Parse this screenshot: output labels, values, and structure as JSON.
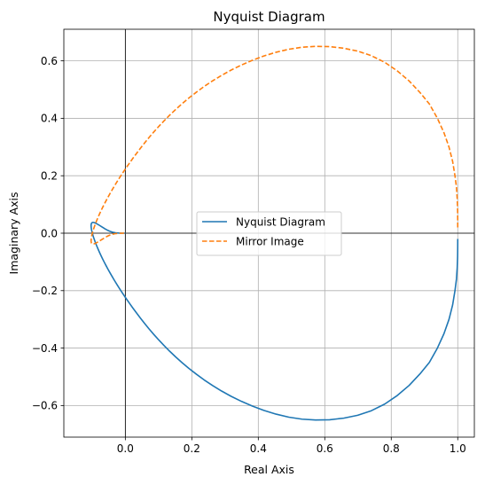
{
  "chart_data": {
    "type": "line",
    "title": "Nyquist Diagram",
    "xlabel": "Real Axis",
    "ylabel": "Imaginary Axis",
    "xlim": [
      -0.185,
      1.05
    ],
    "ylim": [
      -0.71,
      0.71
    ],
    "xticks": [
      0.0,
      0.2,
      0.4,
      0.6,
      0.8,
      1.0
    ],
    "xtick_labels": [
      "0.0",
      "0.2",
      "0.4",
      "0.6",
      "0.8",
      "1.0"
    ],
    "yticks": [
      -0.6,
      -0.4,
      -0.2,
      0.0,
      0.2,
      0.4,
      0.6
    ],
    "ytick_labels": [
      "−0.6",
      "−0.4",
      "−0.2",
      "0.0",
      "0.2",
      "0.4",
      "0.6"
    ],
    "grid": true,
    "reference_lines": {
      "x": 0,
      "y": 0
    },
    "legend": {
      "placement": "center",
      "entries": [
        "Nyquist Diagram",
        "Mirror Image"
      ]
    },
    "series": [
      {
        "name": "Nyquist Diagram",
        "color": "#1f77b4",
        "style": "solid",
        "x": [
          1.0,
          0.9999,
          0.9996,
          0.9984,
          0.9961,
          0.9917,
          0.9846,
          0.9737,
          0.9585,
          0.9388,
          0.9146,
          0.8863,
          0.8538,
          0.8182,
          0.7802,
          0.7402,
          0.6989,
          0.6568,
          0.6146,
          0.5724,
          0.5316,
          0.4919,
          0.4535,
          0.4169,
          0.3822,
          0.3493,
          0.3184,
          0.2895,
          0.2625,
          0.2373,
          0.2138,
          0.1916,
          0.171,
          0.1516,
          0.1334,
          0.1164,
          0.1004,
          0.0853,
          0.0712,
          0.0579,
          0.0453,
          0.0335,
          0.0223,
          0.0118,
          0.0018,
          -0.0075,
          -0.0163,
          -0.0245,
          -0.0322,
          -0.0394,
          -0.0461,
          -0.0524,
          -0.0582,
          -0.0636,
          -0.0686,
          -0.0732,
          -0.0774,
          -0.0812,
          -0.0847,
          -0.0879,
          -0.0907,
          -0.0932,
          -0.0954,
          -0.0973,
          -0.0989,
          -0.1002,
          -0.1013,
          -0.1021,
          -0.1026,
          -0.1029,
          -0.103,
          -0.1028,
          -0.1024,
          -0.1017,
          -0.1008,
          -0.0996,
          -0.0981,
          -0.0963,
          -0.0942,
          -0.0917,
          -0.0888,
          -0.0855,
          -0.0817,
          -0.0774,
          -0.0725,
          -0.067,
          -0.0608,
          -0.0539,
          -0.0463,
          -0.0381,
          -0.0294,
          -0.0206,
          -0.0122,
          -0.005,
          0.0
        ],
        "y": [
          -0.02,
          -0.05,
          -0.08,
          -0.12,
          -0.16,
          -0.2,
          -0.25,
          -0.3,
          -0.35,
          -0.4,
          -0.45,
          -0.49,
          -0.53,
          -0.565,
          -0.595,
          -0.618,
          -0.634,
          -0.644,
          -0.6495,
          -0.6505,
          -0.6475,
          -0.6405,
          -0.63,
          -0.617,
          -0.602,
          -0.5855,
          -0.568,
          -0.5495,
          -0.5305,
          -0.511,
          -0.491,
          -0.471,
          -0.451,
          -0.431,
          -0.411,
          -0.391,
          -0.3715,
          -0.352,
          -0.333,
          -0.314,
          -0.2955,
          -0.2775,
          -0.26,
          -0.243,
          -0.2265,
          -0.2105,
          -0.195,
          -0.18,
          -0.1655,
          -0.1515,
          -0.138,
          -0.125,
          -0.1125,
          -0.1005,
          -0.089,
          -0.078,
          -0.0675,
          -0.0575,
          -0.048,
          -0.039,
          -0.0305,
          -0.0225,
          -0.015,
          -0.008,
          -0.0015,
          0.0045,
          0.01,
          0.015,
          0.0195,
          0.0235,
          0.027,
          0.03,
          0.0325,
          0.0345,
          0.036,
          0.037,
          0.0375,
          0.0375,
          0.037,
          0.036,
          0.0345,
          0.0325,
          0.03,
          0.027,
          0.0235,
          0.0195,
          0.015,
          0.0105,
          0.0065,
          0.0035,
          0.0015,
          0.0005,
          0.0001,
          0.0,
          0.0
        ]
      },
      {
        "name": "Mirror Image",
        "color": "#ff7f0e",
        "style": "dashed",
        "mirror_of": "Nyquist Diagram"
      }
    ]
  }
}
